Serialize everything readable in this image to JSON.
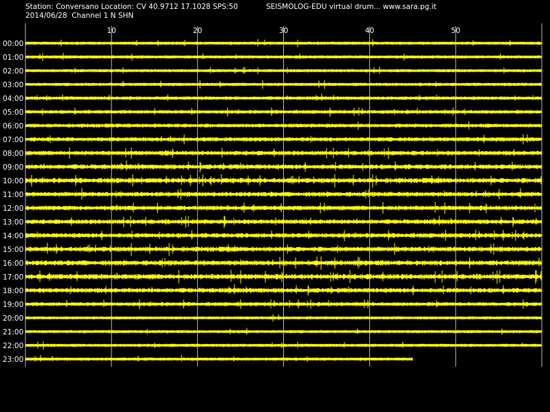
{
  "header": {
    "station_line": "Station: Conversano Location: CV 40.9712 17.1028 SPS:50",
    "title_line": "SEISMOLOG-EDU virtual drum... www.sara.pg.it",
    "date_line": "2014/06/28  Channel 1 N SHN"
  },
  "colors": {
    "background": "#000000",
    "trace": "#ffff00",
    "grid": "#c0c0c0",
    "text": "#ffffff"
  },
  "chart_data": {
    "type": "line",
    "xlim": [
      0,
      60
    ],
    "x_ticks": [
      10,
      20,
      30,
      40,
      50
    ],
    "x_tick_labels": [
      "10",
      "20",
      "30",
      "40",
      "50"
    ],
    "row_labels": [
      "00:00",
      "01:00",
      "02:00",
      "03:00",
      "04:00",
      "05:00",
      "06:00",
      "07:00",
      "08:00",
      "09:00",
      "10:00",
      "11:00",
      "12:00",
      "13:00",
      "14:00",
      "15:00",
      "16:00",
      "17:00",
      "18:00",
      "19:00",
      "20:00",
      "21:00",
      "22:00",
      "23:00"
    ],
    "row_activity": [
      0.35,
      0.35,
      0.35,
      0.4,
      0.45,
      0.5,
      0.55,
      0.7,
      0.75,
      0.9,
      0.95,
      0.85,
      0.8,
      0.8,
      0.85,
      0.9,
      0.95,
      1.0,
      0.85,
      0.6,
      0.3,
      0.3,
      0.35,
      0.35
    ],
    "last_row_end_minute": 45,
    "grid": true
  }
}
